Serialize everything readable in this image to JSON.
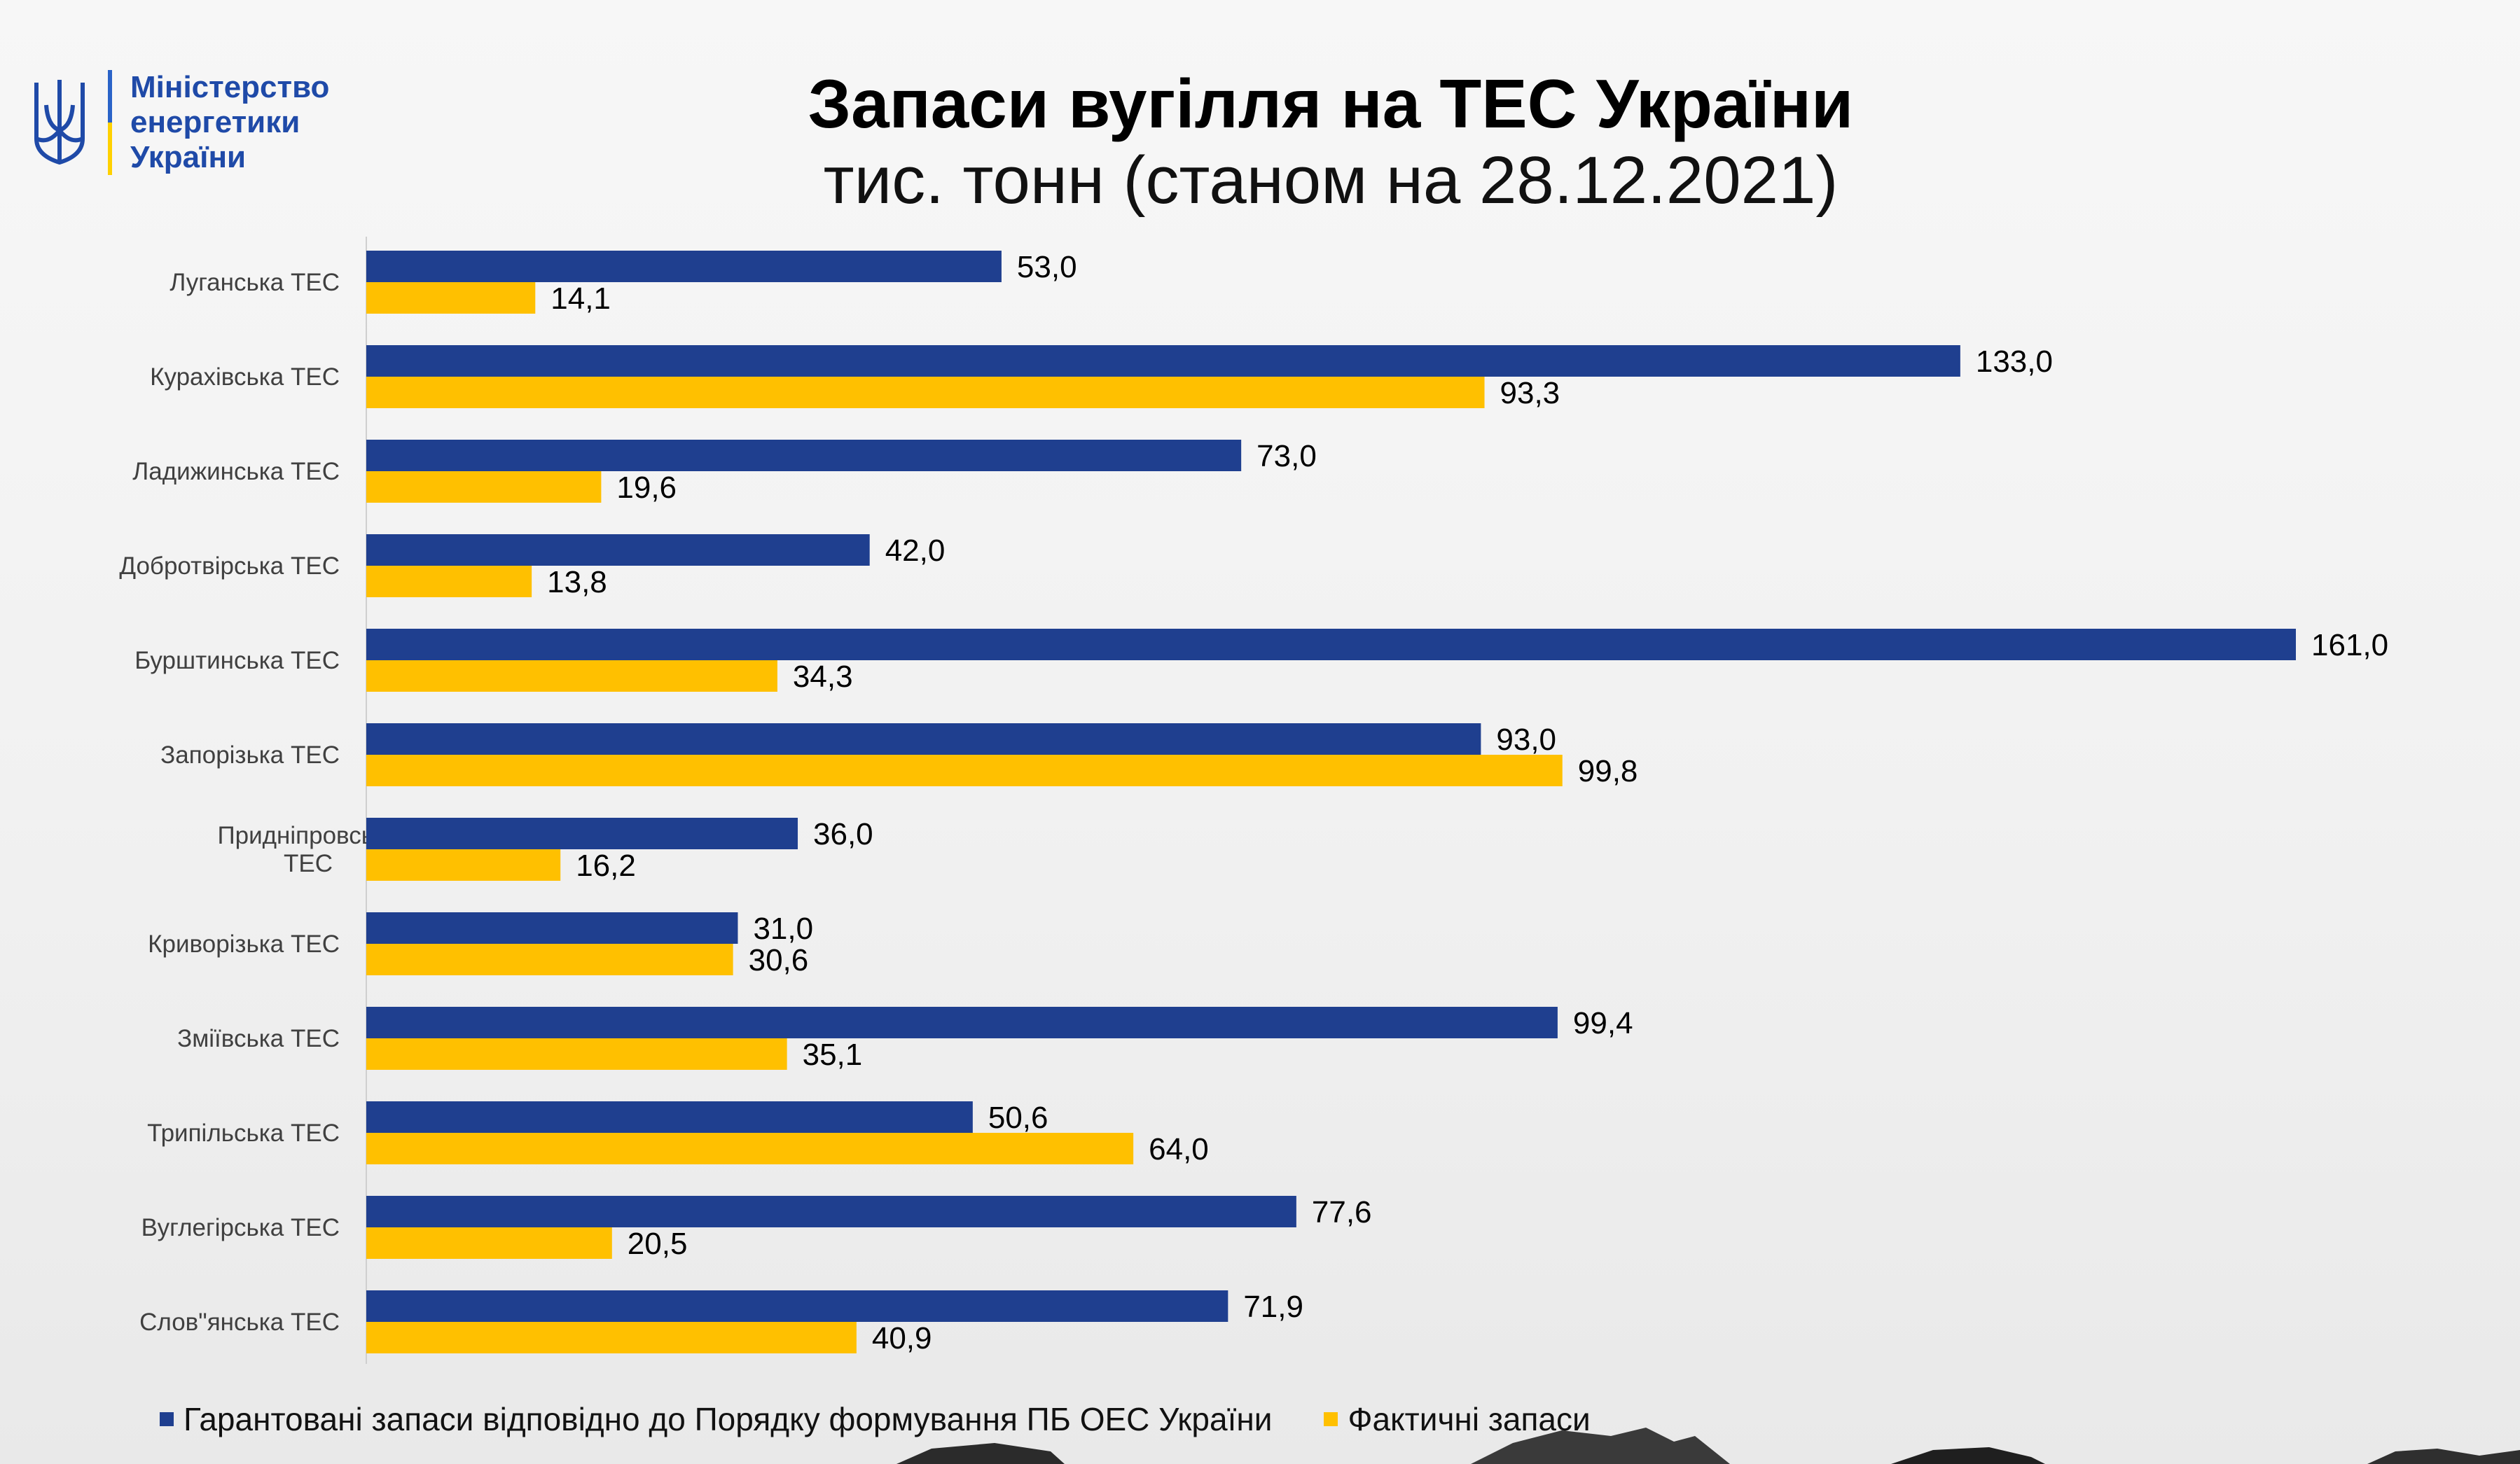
{
  "header": {
    "logo_lines": [
      "Міністерство",
      "енергетики",
      "України"
    ],
    "title": "Запаси вугілля на ТЕС України",
    "subtitle": "тис. тонн (станом на 28.12.2021)"
  },
  "colors": {
    "guaranteed": "#1f3f8f",
    "actual": "#ffc000",
    "axis": "#cfcfcf"
  },
  "chart_data": {
    "type": "bar",
    "orientation": "horizontal",
    "title": "Запаси вугілля на ТЕС України",
    "subtitle": "тис. тонн (станом на 28.12.2021)",
    "categories": [
      [
        "Луганська ТЕС"
      ],
      [
        "Курахівська ТЕС"
      ],
      [
        "Ладижинська ТЕС"
      ],
      [
        "Добротвірська ТЕС"
      ],
      [
        "Бурштинська  ТЕС"
      ],
      [
        "Запорізька  ТЕС"
      ],
      [
        "Придніпровська",
        "ТЕС"
      ],
      [
        "Криворізька ТЕС"
      ],
      [
        "Зміївська ТЕС"
      ],
      [
        "Трипільська  ТЕС"
      ],
      [
        "Вуглегірська  ТЕС"
      ],
      [
        "Слов\"янська ТЕС"
      ]
    ],
    "series": [
      {
        "name": "Гарантовані запаси відповідно до Порядку формування ПБ ОЕС України",
        "color": "#1f3f8f",
        "values": [
          53.0,
          133.0,
          73.0,
          42.0,
          161.0,
          93.0,
          36.0,
          31.0,
          99.4,
          50.6,
          77.6,
          71.9
        ],
        "labels": [
          "53,0",
          "133,0",
          "73,0",
          "42,0",
          "161,0",
          "93,0",
          "36,0",
          "31,0",
          "99,4",
          "50,6",
          "77,6",
          "71,9"
        ]
      },
      {
        "name": "Фактичні запаси",
        "color": "#ffc000",
        "values": [
          14.1,
          93.3,
          19.6,
          13.8,
          34.3,
          99.8,
          16.2,
          30.6,
          35.1,
          64.0,
          20.5,
          40.9
        ],
        "labels": [
          "14,1",
          "93,3",
          "19,6",
          "13,8",
          "34,3",
          "99,8",
          "16,2",
          "30,6",
          "35,1",
          "64,0",
          "20,5",
          "40,9"
        ]
      }
    ],
    "xlim": [
      0,
      161
    ],
    "grid": false,
    "legend": "bottom-left"
  }
}
